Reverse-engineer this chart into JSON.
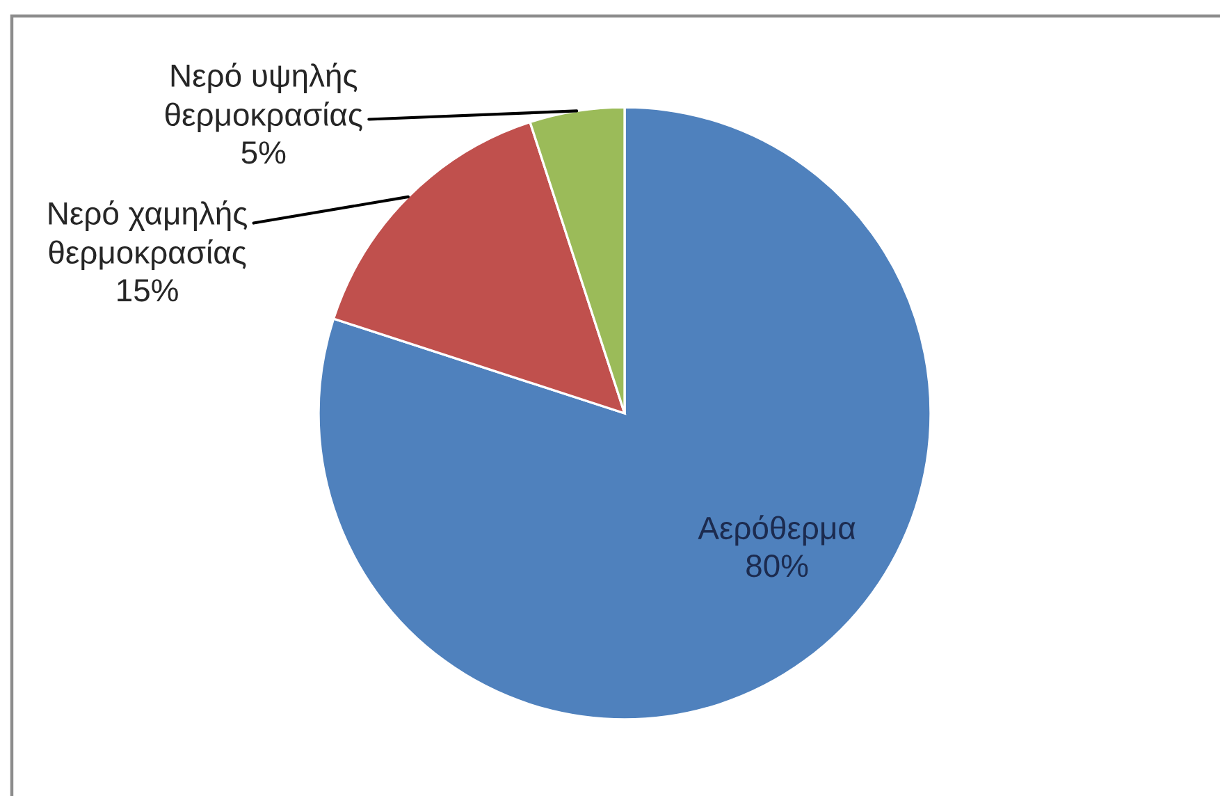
{
  "chart_data": {
    "type": "pie",
    "categories": [
      "Αερόθερμα",
      "Νερό χαμηλής θερμοκρασίας",
      "Νερό υψηλής θερμοκρασίας"
    ],
    "values": [
      80,
      15,
      5
    ],
    "colors": [
      "#4f81bd",
      "#c0504d",
      "#9bbb59"
    ],
    "value_labels": [
      "80%",
      "15%",
      "5%"
    ],
    "legend": false
  }
}
